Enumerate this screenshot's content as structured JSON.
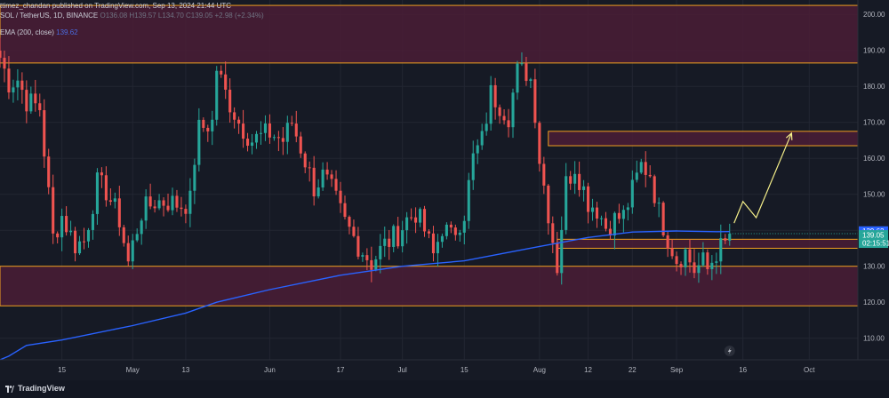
{
  "header": {
    "publisher": "ttimez_chandan published on TradingView.com, Sep 13, 2024 21:44 UTC",
    "symbol": "SOL / TetherUS, 1D, BINANCE",
    "ohlc": "O136.08 H139.57 L134.70 C139.05 +2.98 (+2.34%)",
    "indicator_label": "EMA (200, close)",
    "indicator_value": "139.62"
  },
  "footer": {
    "brand": "TradingView"
  },
  "colors": {
    "background": "#161a25",
    "up": "#26a69a",
    "down": "#ef5350",
    "ema": "#2962ff",
    "zone_fill": "#4a1d36",
    "zone_border": "#f0a020",
    "projection": "#f6f08a"
  },
  "chart_data": {
    "type": "candlestick",
    "ylim": [
      104,
      204
    ],
    "y_ticks": [
      "110.00",
      "120.00",
      "130.00",
      "140.00",
      "150.00",
      "160.00",
      "170.00",
      "180.00",
      "190.00",
      "200.00"
    ],
    "x_ticks": [
      {
        "label": "15",
        "date": "2024-04-15"
      },
      {
        "label": "May",
        "date": "2024-05-01"
      },
      {
        "label": "13",
        "date": "2024-05-13"
      },
      {
        "label": "Jun",
        "date": "2024-06-01"
      },
      {
        "label": "17",
        "date": "2024-06-17"
      },
      {
        "label": "Jul",
        "date": "2024-07-01"
      },
      {
        "label": "15",
        "date": "2024-07-15"
      },
      {
        "label": "Aug",
        "date": "2024-08-01"
      },
      {
        "label": "12",
        "date": "2024-08-12"
      },
      {
        "label": "22",
        "date": "2024-08-22"
      },
      {
        "label": "Sep",
        "date": "2024-09-01"
      },
      {
        "label": "16",
        "date": "2024-09-16"
      },
      {
        "label": "Oct",
        "date": "2024-10-01"
      }
    ],
    "price_labels": [
      {
        "value": 139.62,
        "text": "139.62",
        "color": "#2962ff"
      },
      {
        "value": 139.05,
        "text": "139.05",
        "color": "#26a69a"
      },
      {
        "text": "02:15:51",
        "color": "#26a69a"
      }
    ],
    "zones": [
      {
        "low": 186.5,
        "high": 202.5
      },
      {
        "low": 163.5,
        "high": 167.5
      },
      {
        "low": 135.0,
        "high": 137.5
      },
      {
        "low": 119.0,
        "high": 130.0
      }
    ],
    "projection": [
      {
        "date": "2024-09-14",
        "price": 142
      },
      {
        "date": "2024-09-16",
        "price": 148
      },
      {
        "date": "2024-09-19",
        "price": 143.5
      },
      {
        "date": "2024-09-27",
        "price": 167
      }
    ],
    "ema_period": 200,
    "ema_start": {
      "date": "2024-04-01",
      "price": 104
    },
    "ema": [
      {
        "date": "2024-04-03",
        "price": 105
      },
      {
        "date": "2024-04-07",
        "price": 108
      },
      {
        "date": "2024-04-15",
        "price": 109.5
      },
      {
        "date": "2024-05-01",
        "price": 113.5
      },
      {
        "date": "2024-05-13",
        "price": 117
      },
      {
        "date": "2024-05-20",
        "price": 120
      },
      {
        "date": "2024-06-01",
        "price": 123.5
      },
      {
        "date": "2024-06-17",
        "price": 127.5
      },
      {
        "date": "2024-07-01",
        "price": 130
      },
      {
        "date": "2024-07-15",
        "price": 131.5
      },
      {
        "date": "2024-08-01",
        "price": 135.5
      },
      {
        "date": "2024-08-12",
        "price": 138
      },
      {
        "date": "2024-08-22",
        "price": 139.5
      },
      {
        "date": "2024-09-01",
        "price": 139.8
      },
      {
        "date": "2024-09-10",
        "price": 139.6
      },
      {
        "date": "2024-09-13",
        "price": 139.62
      }
    ],
    "close_path": [
      {
        "date": "2024-04-01",
        "price": 188
      },
      {
        "date": "2024-04-03",
        "price": 181
      },
      {
        "date": "2024-04-05",
        "price": 182
      },
      {
        "date": "2024-04-07",
        "price": 176
      },
      {
        "date": "2024-04-10",
        "price": 174
      },
      {
        "date": "2024-04-12",
        "price": 150
      },
      {
        "date": "2024-04-13",
        "price": 138
      },
      {
        "date": "2024-04-15",
        "price": 144
      },
      {
        "date": "2024-04-18",
        "price": 136
      },
      {
        "date": "2024-04-20",
        "price": 137
      },
      {
        "date": "2024-04-23",
        "price": 153
      },
      {
        "date": "2024-04-25",
        "price": 151
      },
      {
        "date": "2024-04-28",
        "price": 143
      },
      {
        "date": "2024-04-30",
        "price": 131
      },
      {
        "date": "2024-05-01",
        "price": 136
      },
      {
        "date": "2024-05-03",
        "price": 145
      },
      {
        "date": "2024-05-06",
        "price": 148
      },
      {
        "date": "2024-05-09",
        "price": 148
      },
      {
        "date": "2024-05-12",
        "price": 147
      },
      {
        "date": "2024-05-14",
        "price": 148
      },
      {
        "date": "2024-05-15",
        "price": 160
      },
      {
        "date": "2024-05-16",
        "price": 168
      },
      {
        "date": "2024-05-19",
        "price": 170
      },
      {
        "date": "2024-05-20",
        "price": 185
      },
      {
        "date": "2024-05-22",
        "price": 178
      },
      {
        "date": "2024-05-25",
        "price": 170
      },
      {
        "date": "2024-05-28",
        "price": 165
      },
      {
        "date": "2024-06-01",
        "price": 167
      },
      {
        "date": "2024-06-04",
        "price": 165
      },
      {
        "date": "2024-06-06",
        "price": 170
      },
      {
        "date": "2024-06-08",
        "price": 163
      },
      {
        "date": "2024-06-11",
        "price": 152
      },
      {
        "date": "2024-06-13",
        "price": 155
      },
      {
        "date": "2024-06-15",
        "price": 151
      },
      {
        "date": "2024-06-18",
        "price": 142
      },
      {
        "date": "2024-06-21",
        "price": 136
      },
      {
        "date": "2024-06-24",
        "price": 131
      },
      {
        "date": "2024-06-27",
        "price": 136
      },
      {
        "date": "2024-06-30",
        "price": 139
      },
      {
        "date": "2024-07-02",
        "price": 143
      },
      {
        "date": "2024-07-04",
        "price": 145
      },
      {
        "date": "2024-07-06",
        "price": 140
      },
      {
        "date": "2024-07-08",
        "price": 133
      },
      {
        "date": "2024-07-10",
        "price": 141
      },
      {
        "date": "2024-07-12",
        "price": 138
      },
      {
        "date": "2024-07-15",
        "price": 145
      },
      {
        "date": "2024-07-17",
        "price": 160
      },
      {
        "date": "2024-07-19",
        "price": 165
      },
      {
        "date": "2024-07-21",
        "price": 178
      },
      {
        "date": "2024-07-23",
        "price": 175
      },
      {
        "date": "2024-07-25",
        "price": 172
      },
      {
        "date": "2024-07-27",
        "price": 184
      },
      {
        "date": "2024-07-29",
        "price": 184
      },
      {
        "date": "2024-07-30",
        "price": 182
      },
      {
        "date": "2024-07-31",
        "price": 173
      },
      {
        "date": "2024-08-01",
        "price": 160
      },
      {
        "date": "2024-08-03",
        "price": 145
      },
      {
        "date": "2024-08-05",
        "price": 130
      },
      {
        "date": "2024-08-07",
        "price": 153
      },
      {
        "date": "2024-08-09",
        "price": 158
      },
      {
        "date": "2024-08-12",
        "price": 148
      },
      {
        "date": "2024-08-14",
        "price": 146
      },
      {
        "date": "2024-08-16",
        "price": 141
      },
      {
        "date": "2024-08-18",
        "price": 143
      },
      {
        "date": "2024-08-20",
        "price": 144
      },
      {
        "date": "2024-08-22",
        "price": 151
      },
      {
        "date": "2024-08-24",
        "price": 158
      },
      {
        "date": "2024-08-26",
        "price": 156
      },
      {
        "date": "2024-08-28",
        "price": 145
      },
      {
        "date": "2024-08-30",
        "price": 138
      },
      {
        "date": "2024-09-01",
        "price": 132
      },
      {
        "date": "2024-09-03",
        "price": 134
      },
      {
        "date": "2024-09-05",
        "price": 129
      },
      {
        "date": "2024-09-07",
        "price": 131
      },
      {
        "date": "2024-09-08",
        "price": 129
      },
      {
        "date": "2024-09-10",
        "price": 134
      },
      {
        "date": "2024-09-12",
        "price": 136
      },
      {
        "date": "2024-09-13",
        "price": 139.05
      }
    ]
  }
}
